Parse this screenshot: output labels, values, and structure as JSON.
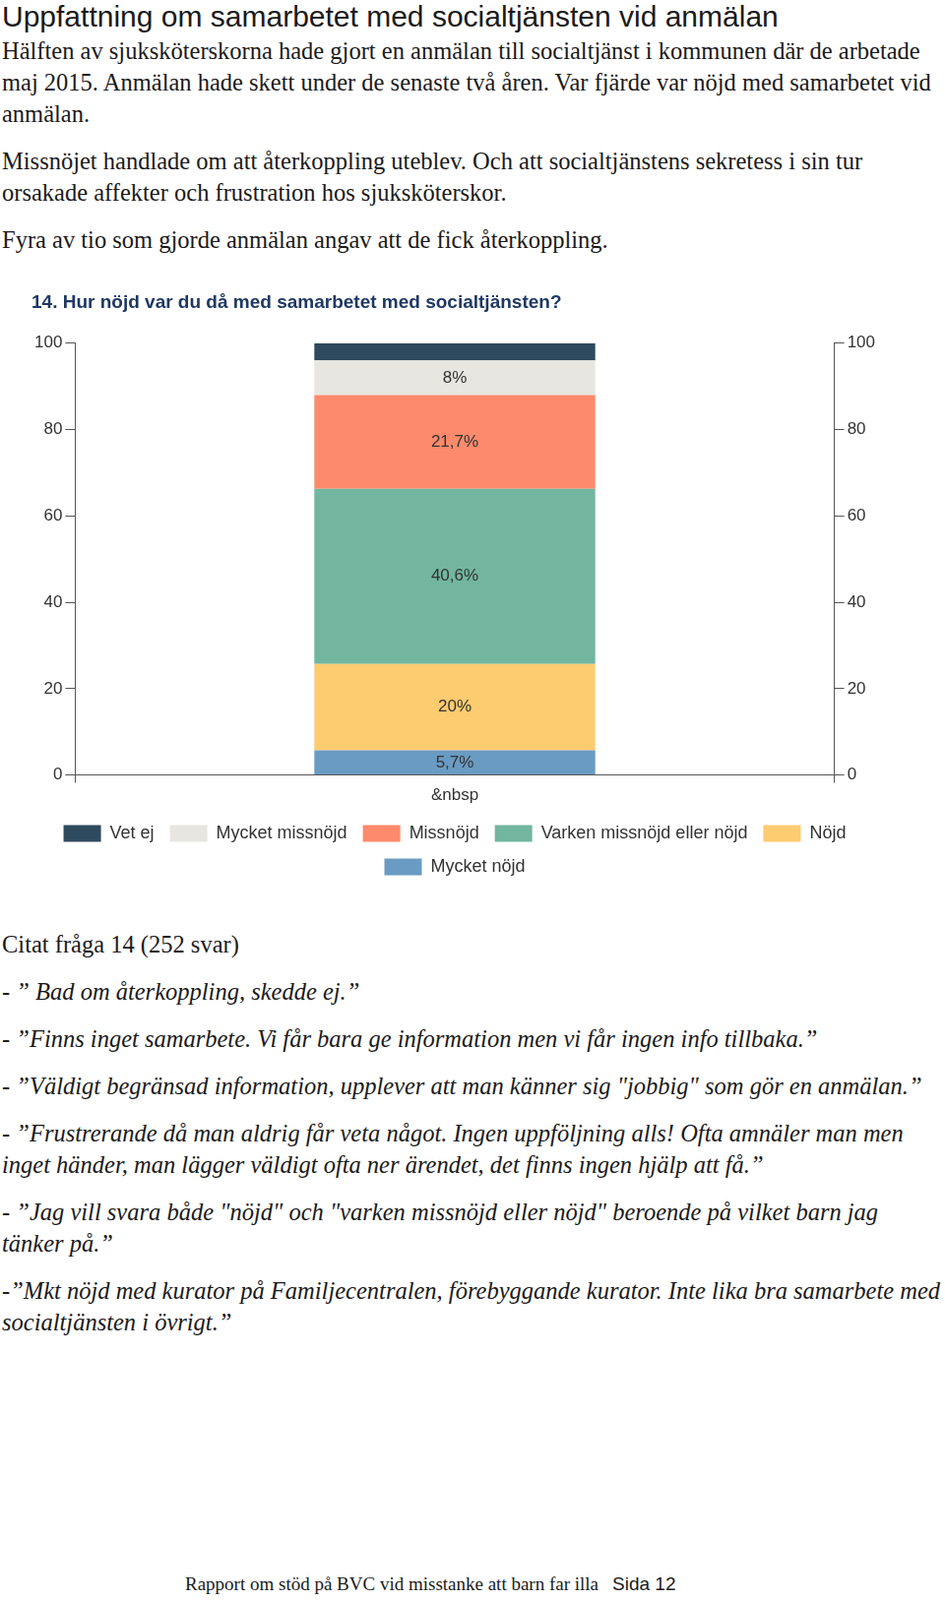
{
  "heading": "Uppfattning om samarbetet med socialtjänsten vid anmälan",
  "paragraphs": [
    "Hälften av sjuksköterskorna hade gjort en anmälan till socialtjänst i kommunen där de arbetade maj 2015. Anmälan hade skett under de senaste två åren. Var fjärde var nöjd med samarbetet vid anmälan.",
    "Missnöjet handlade om att återkoppling uteblev. Och att socialtjänstens sekretess i sin tur orsakade affekter och frustration hos sjuksköterskor.",
    "Fyra av tio som gjorde anmälan angav att de fick återkoppling."
  ],
  "chart_data": {
    "type": "bar",
    "title": "14. Hur nöjd var du då med samarbetet med socialtjänsten?",
    "categories": [
      "&nbsp"
    ],
    "stacked": true,
    "data_labels": true,
    "grid": false,
    "legend": "bottom",
    "ylim": [
      0,
      100
    ],
    "yticks": [
      0,
      20,
      40,
      60,
      80,
      100
    ],
    "y2lim": [
      0,
      100
    ],
    "y2ticks": [
      0,
      20,
      40,
      60,
      80,
      100
    ],
    "series": [
      {
        "name": "Mycket nöjd",
        "color": "#6a9bc3",
        "values": [
          5.7
        ],
        "value_labels": [
          "5,7%"
        ]
      },
      {
        "name": "Nöjd",
        "color": "#fdcb70",
        "values": [
          20
        ],
        "value_labels": [
          "20%"
        ]
      },
      {
        "name": "Varken missnöjd eller nöjd",
        "color": "#72b6a0",
        "values": [
          40.6
        ],
        "value_labels": [
          "40,6%"
        ]
      },
      {
        "name": "Missnöjd",
        "color": "#fd8a6c",
        "values": [
          21.7
        ],
        "value_labels": [
          "21,7%"
        ]
      },
      {
        "name": "Mycket missnöjd",
        "color": "#e8e6e0",
        "values": [
          8
        ],
        "value_labels": [
          "8%"
        ]
      },
      {
        "name": "Vet ej",
        "color": "#2e4a5e",
        "values": [
          4
        ],
        "value_labels": [
          null
        ]
      }
    ]
  },
  "quotes_heading": "Citat fråga 14 (252 svar)",
  "quotes": [
    "- ” Bad om återkoppling, skedde ej.”",
    "- ”Finns inget samarbete. Vi får bara ge information men vi får ingen info tillbaka.”",
    "- ”Väldigt begränsad information, upplever att man känner sig \"jobbig\" som gör en anmälan.”",
    "- ”Frustrerande då man aldrig får veta något. Ingen uppföljning alls! Ofta amnäler man men inget händer, man lägger väldigt ofta ner ärendet, det finns ingen hjälp att få.”",
    "- ”Jag vill svara både \"nöjd\" och \"varken missnöjd eller nöjd\" beroende på vilket barn jag tänker på.”",
    "-”Mkt nöjd med kurator på Familjecentralen, förebyggande kurator. Inte lika bra samarbete med socialtjänsten i övrigt.”"
  ],
  "footer": {
    "text": "Rapport om stöd på BVC vid misstanke att barn far illa",
    "page": "Sida 12"
  }
}
